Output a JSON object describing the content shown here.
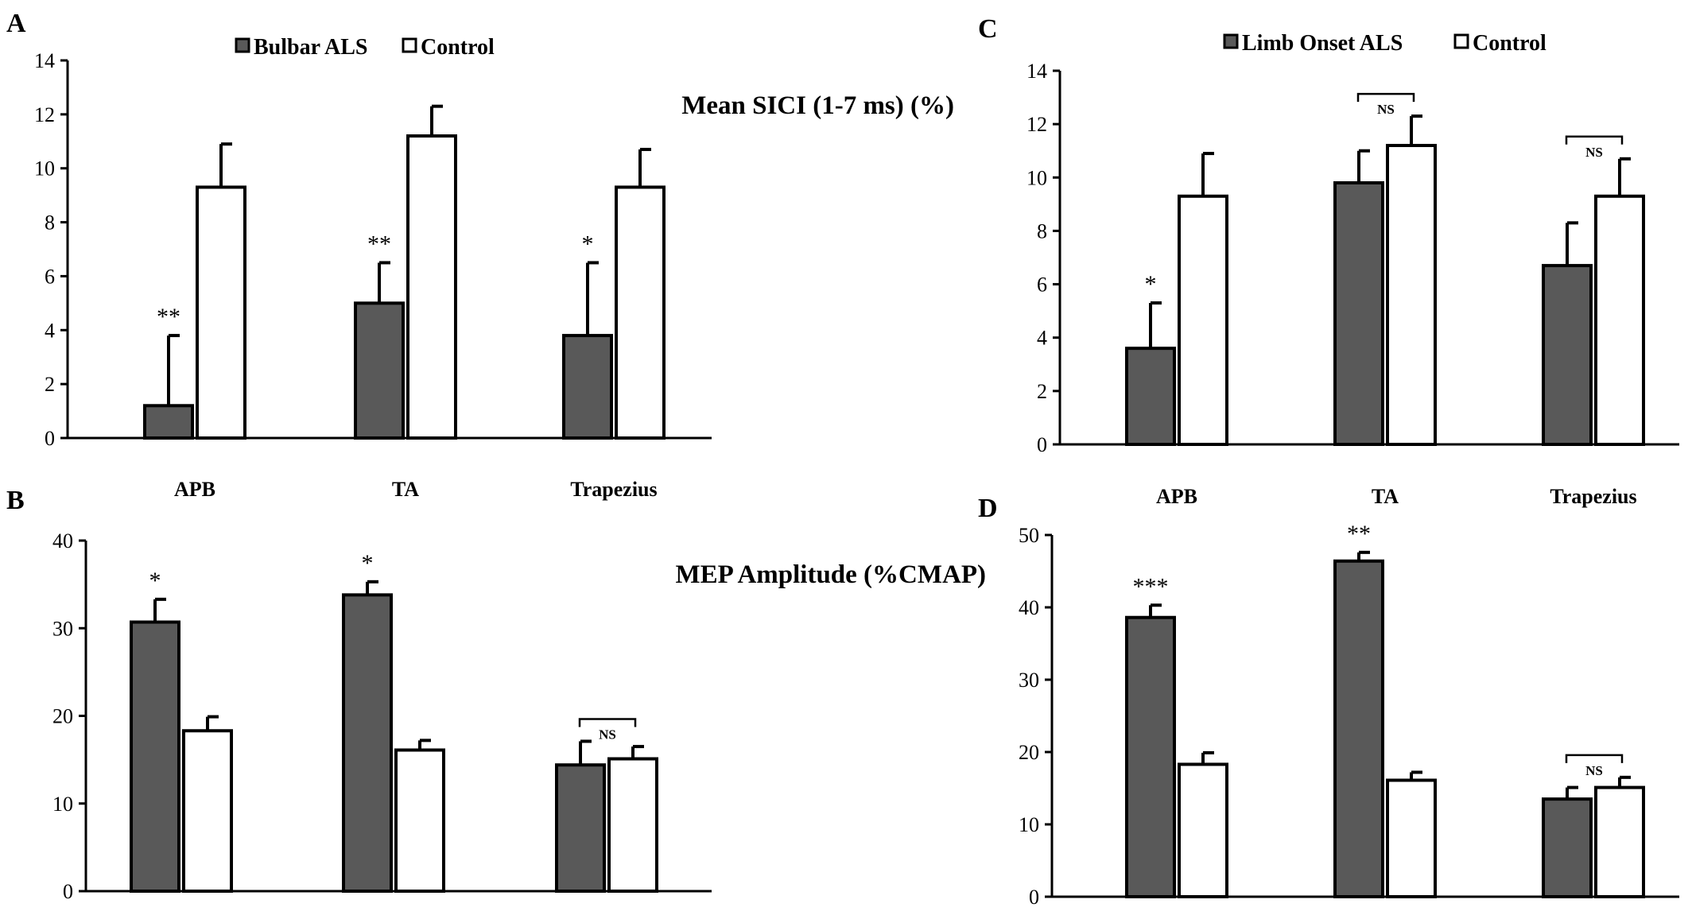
{
  "figure": {
    "categories": [
      "APB",
      "TA",
      "Trapezius"
    ],
    "colors": {
      "als": "#595959",
      "control": "#ffffff",
      "axis": "#000000"
    }
  },
  "chart_data": [
    {
      "id": "A",
      "panel_label": "A",
      "type": "bar",
      "title": "Mean SICI (1-7 ms) (%)",
      "legend": [
        "Bulbar ALS",
        "Control"
      ],
      "legend_placement": "top-center",
      "categories": [
        "APB",
        "TA",
        "Trapezius"
      ],
      "show_category_labels": true,
      "ylim": [
        0,
        14
      ],
      "yticks": [
        "0",
        "2",
        "4",
        "6",
        "8",
        "10",
        "12",
        "14"
      ],
      "series": [
        {
          "name": "Bulbar ALS",
          "values": [
            1.2,
            5.0,
            3.8
          ],
          "errors": [
            2.6,
            1.5,
            2.7
          ]
        },
        {
          "name": "Control",
          "values": [
            9.3,
            11.2,
            9.3
          ],
          "errors": [
            1.6,
            1.1,
            1.4
          ]
        }
      ],
      "annotations": [
        {
          "category": 0,
          "series": 0,
          "text": "**"
        },
        {
          "category": 1,
          "series": 0,
          "text": "**"
        },
        {
          "category": 2,
          "series": 0,
          "text": "*"
        }
      ],
      "brackets": []
    },
    {
      "id": "B",
      "panel_label": "B",
      "type": "bar",
      "title": "MEP Amplitude (%CMAP)",
      "legend": [],
      "categories": [
        "APB",
        "TA",
        "Trapezius"
      ],
      "show_category_labels": false,
      "ylim": [
        0,
        40
      ],
      "yticks": [
        "0",
        "10",
        "20",
        "30",
        "40"
      ],
      "series": [
        {
          "name": "Bulbar ALS",
          "values": [
            30.7,
            33.8,
            14.4
          ],
          "errors": [
            2.6,
            1.5,
            2.7
          ]
        },
        {
          "name": "Control",
          "values": [
            18.3,
            16.1,
            15.1
          ],
          "errors": [
            1.6,
            1.1,
            1.4
          ]
        }
      ],
      "annotations": [
        {
          "category": 0,
          "series": 0,
          "text": "*"
        },
        {
          "category": 1,
          "series": 0,
          "text": "*"
        }
      ],
      "brackets": [
        {
          "category": 2,
          "text": "NS"
        }
      ]
    },
    {
      "id": "C",
      "panel_label": "C",
      "type": "bar",
      "title": "",
      "legend": [
        "Limb Onset ALS",
        "Control"
      ],
      "legend_placement": "top-center",
      "categories": [
        "APB",
        "TA",
        "Trapezius"
      ],
      "show_category_labels": true,
      "ylim": [
        0,
        14
      ],
      "yticks": [
        "0",
        "2",
        "4",
        "6",
        "8",
        "10",
        "12",
        "14"
      ],
      "series": [
        {
          "name": "Limb Onset ALS",
          "values": [
            3.6,
            9.8,
            6.7
          ],
          "errors": [
            1.7,
            1.2,
            1.6
          ]
        },
        {
          "name": "Control",
          "values": [
            9.3,
            11.2,
            9.3
          ],
          "errors": [
            1.6,
            1.1,
            1.4
          ]
        }
      ],
      "annotations": [
        {
          "category": 0,
          "series": 0,
          "text": "*"
        }
      ],
      "brackets": [
        {
          "category": 1,
          "text": "NS"
        },
        {
          "category": 2,
          "text": "NS"
        }
      ]
    },
    {
      "id": "D",
      "panel_label": "D",
      "type": "bar",
      "title": "",
      "legend": [],
      "categories": [
        "APB",
        "TA",
        "Trapezius"
      ],
      "show_category_labels": false,
      "ylim": [
        0,
        50
      ],
      "yticks": [
        "0",
        "10",
        "20",
        "30",
        "40",
        "50"
      ],
      "series": [
        {
          "name": "Limb Onset ALS",
          "values": [
            38.6,
            46.4,
            13.5
          ],
          "errors": [
            1.7,
            1.2,
            1.6
          ]
        },
        {
          "name": "Control",
          "values": [
            18.3,
            16.1,
            15.1
          ],
          "errors": [
            1.6,
            1.1,
            1.4
          ]
        }
      ],
      "annotations": [
        {
          "category": 0,
          "series": 0,
          "text": "***"
        },
        {
          "category": 1,
          "series": 0,
          "text": "**"
        }
      ],
      "brackets": [
        {
          "category": 2,
          "text": "NS"
        }
      ]
    }
  ]
}
